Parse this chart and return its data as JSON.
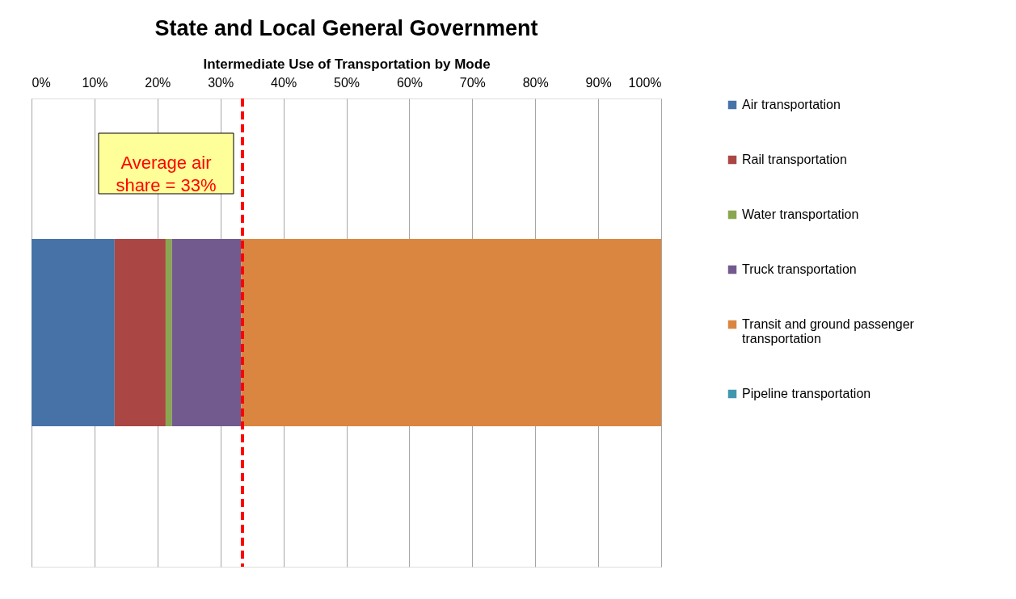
{
  "chart_data": {
    "type": "bar",
    "orientation": "horizontal",
    "stacked": true,
    "title": "State and Local General Government",
    "xlabel": "Intermediate Use of Transportation by Mode",
    "categories": [
      null
    ],
    "series": [
      {
        "name": "Air transportation",
        "color": "#4672a8",
        "values": [
          13.2
        ]
      },
      {
        "name": "Rail transportation",
        "color": "#aa4744",
        "values": [
          8.1
        ]
      },
      {
        "name": "Water transportation",
        "color": "#8aa64f",
        "values": [
          1.0
        ]
      },
      {
        "name": "Truck transportation",
        "color": "#725a8f",
        "values": [
          11.0
        ]
      },
      {
        "name": "Transit and ground passenger transportation",
        "color": "#da8540",
        "values": [
          66.7
        ]
      },
      {
        "name": "Pipeline transportation",
        "color": "#4097ae",
        "values": [
          0
        ]
      }
    ],
    "xlim": [
      0,
      100
    ],
    "xticks": [
      {
        "value": 0,
        "label": "0%"
      },
      {
        "value": 10,
        "label": "10%"
      },
      {
        "value": 20,
        "label": "20%"
      },
      {
        "value": 30,
        "label": "30%"
      },
      {
        "value": 40,
        "label": "40%"
      },
      {
        "value": 50,
        "label": "50%"
      },
      {
        "value": 60,
        "label": "60%"
      },
      {
        "value": 70,
        "label": "70%"
      },
      {
        "value": 80,
        "label": "80%"
      },
      {
        "value": 90,
        "label": "90%"
      },
      {
        "value": 100,
        "label": "100%"
      }
    ],
    "ref_lines": [
      {
        "axis": "x",
        "value": 33.5,
        "label": "Average air share = 33%",
        "color": "#ff0000",
        "line_style": "dashed"
      }
    ],
    "grid": "x",
    "legend": "right",
    "tick_labels": "x"
  }
}
